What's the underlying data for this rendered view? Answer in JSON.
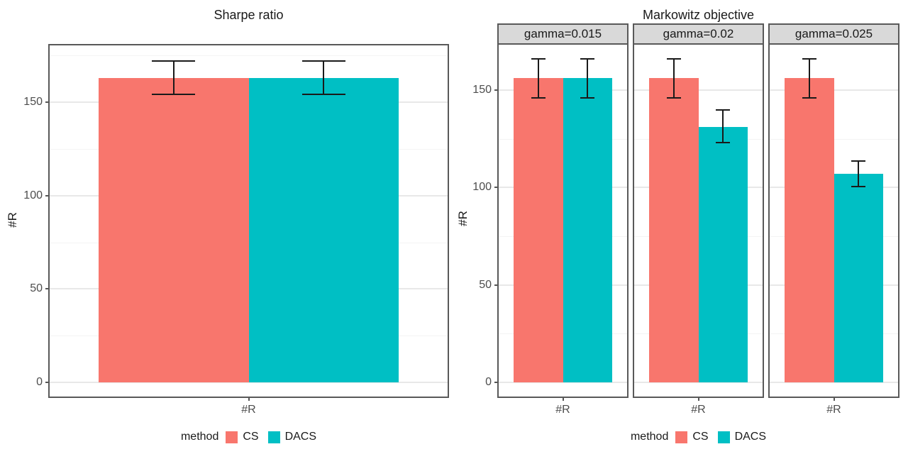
{
  "figure": {
    "background": "#FFFFFF"
  },
  "chart_data": [
    {
      "type": "bar",
      "title": "Sharpe ratio",
      "xlabel": "#R",
      "ylabel": "#R",
      "legend_title": "method",
      "legend_position": "bottom",
      "grid": true,
      "series": [
        {
          "name": "CS",
          "color": "#F8766D"
        },
        {
          "name": "DACS",
          "color": "#00BFC4"
        }
      ],
      "y_ticks": [
        0,
        50,
        100,
        150
      ],
      "y_minor_ticks": [
        25,
        75,
        125,
        175
      ],
      "ylim": [
        -8.4,
        181.2
      ],
      "panels": [
        {
          "facet": null,
          "category": "#R",
          "bars": [
            {
              "series": "CS",
              "value": 163,
              "ci_low": 154,
              "ci_high": 172.5
            },
            {
              "series": "DACS",
              "value": 163,
              "ci_low": 154,
              "ci_high": 172.5
            }
          ]
        }
      ]
    },
    {
      "type": "bar",
      "title": "Markowitz objective",
      "xlabel": "#R",
      "ylabel": "#R",
      "legend_title": "method",
      "legend_position": "bottom",
      "grid": true,
      "series": [
        {
          "name": "CS",
          "color": "#F8766D"
        },
        {
          "name": "DACS",
          "color": "#00BFC4"
        }
      ],
      "y_ticks": [
        0,
        50,
        100,
        150
      ],
      "y_minor_ticks": [
        25,
        75,
        125,
        175
      ],
      "ylim": [
        -8,
        174
      ],
      "panels": [
        {
          "facet": "gamma=0.015",
          "category": "#R",
          "bars": [
            {
              "series": "CS",
              "value": 156,
              "ci_low": 145.5,
              "ci_high": 166.5
            },
            {
              "series": "DACS",
              "value": 156,
              "ci_low": 145.5,
              "ci_high": 166.5
            }
          ]
        },
        {
          "facet": "gamma=0.02",
          "category": "#R",
          "bars": [
            {
              "series": "CS",
              "value": 156,
              "ci_low": 145.5,
              "ci_high": 166.5
            },
            {
              "series": "DACS",
              "value": 131,
              "ci_low": 122.5,
              "ci_high": 140
            }
          ]
        },
        {
          "facet": "gamma=0.025",
          "category": "#R",
          "bars": [
            {
              "series": "CS",
              "value": 156,
              "ci_low": 145.5,
              "ci_high": 166.5
            },
            {
              "series": "DACS",
              "value": 107,
              "ci_low": 100,
              "ci_high": 114
            }
          ]
        }
      ]
    }
  ],
  "styles": {
    "bar_colors": {
      "CS": "#F8766D",
      "DACS": "#00BFC4"
    },
    "strip_background": "#D9D9D9",
    "panel_border": "#595959",
    "grid_major": "#E8E8E8",
    "grid_minor": "#F4F4F4",
    "tick_text": "#4D4D4D",
    "text": "#1A1A1A",
    "errorbar": "#1A1A1A"
  }
}
